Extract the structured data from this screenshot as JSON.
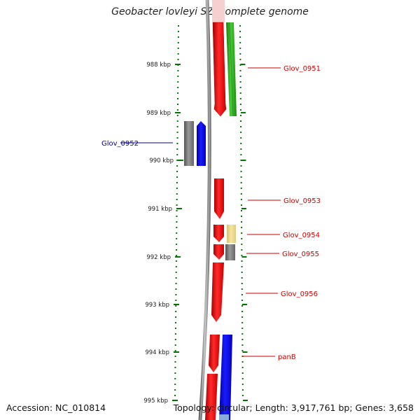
{
  "title": "Geobacter lovleyi SZ, complete genome",
  "footer": {
    "accession": "Accession: NC_010814",
    "summary": "Topology: circular; Length: 3,917,761 bp; Genes: 3,658"
  },
  "kbp_ticks": [
    {
      "kbp": 988,
      "label": "988 kbp"
    },
    {
      "kbp": 989,
      "label": "989 kbp"
    },
    {
      "kbp": 990,
      "label": "990 kbp"
    },
    {
      "kbp": 991,
      "label": "991 kbp"
    },
    {
      "kbp": 992,
      "label": "992 kbp"
    },
    {
      "kbp": 993,
      "label": "993 kbp"
    },
    {
      "kbp": 994,
      "label": "994 kbp"
    },
    {
      "kbp": 995,
      "label": "995 kbp"
    }
  ],
  "genes": [
    {
      "label": "Glov_0951",
      "color": "#cc0000"
    },
    {
      "label": "Glov_0952",
      "color": "#000099"
    },
    {
      "label": "Glov_0953",
      "color": "#cc0000"
    },
    {
      "label": "Glov_0954",
      "color": "#cc0000"
    },
    {
      "label": "Glov_0955",
      "color": "#cc0000"
    },
    {
      "label": "Glov_0956",
      "color": "#cc0000"
    },
    {
      "label": "panB",
      "color": "#cc0000"
    }
  ],
  "colors": {
    "red": "#ee1111",
    "green": "#33aa22",
    "blue": "#0000ee",
    "gray": "#777777",
    "yellow": "#eedd88",
    "tick": "#007700",
    "backbone": "#888888"
  }
}
